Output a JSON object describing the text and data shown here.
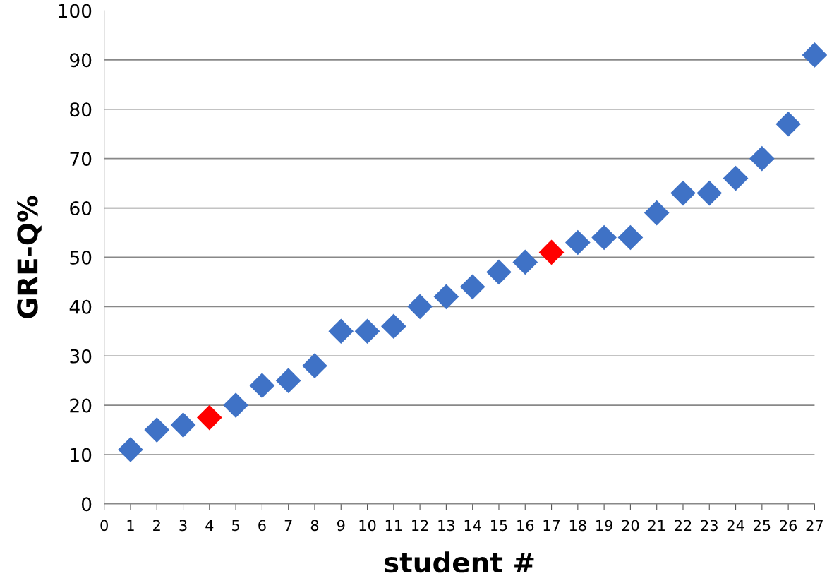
{
  "chart_data": {
    "type": "scatter",
    "xlabel": "student #",
    "ylabel": "GRE-Q%",
    "x": [
      1,
      2,
      3,
      4,
      5,
      6,
      7,
      8,
      9,
      10,
      11,
      12,
      13,
      14,
      15,
      16,
      17,
      18,
      19,
      20,
      21,
      22,
      23,
      24,
      25,
      26,
      27
    ],
    "values": [
      11,
      15,
      16,
      17.5,
      20,
      24,
      25,
      28,
      35,
      35,
      36,
      40,
      42,
      44,
      47,
      49,
      51,
      53,
      54,
      54,
      59,
      63,
      63,
      66,
      70,
      77,
      91
    ],
    "colors": [
      "#3f72c6",
      "#3f72c6",
      "#3f72c6",
      "#ff0000",
      "#3f72c6",
      "#3f72c6",
      "#3f72c6",
      "#3f72c6",
      "#3f72c6",
      "#3f72c6",
      "#3f72c6",
      "#3f72c6",
      "#3f72c6",
      "#3f72c6",
      "#3f72c6",
      "#3f72c6",
      "#ff0000",
      "#3f72c6",
      "#3f72c6",
      "#3f72c6",
      "#3f72c6",
      "#3f72c6",
      "#3f72c6",
      "#3f72c6",
      "#3f72c6",
      "#3f72c6",
      "#3f72c6"
    ],
    "xlim": [
      0,
      27
    ],
    "xticks": [
      0,
      1,
      2,
      3,
      4,
      5,
      6,
      7,
      8,
      9,
      10,
      11,
      12,
      13,
      14,
      15,
      16,
      17,
      18,
      19,
      20,
      21,
      22,
      23,
      24,
      25,
      26,
      27
    ],
    "ylim": [
      0,
      100
    ],
    "yticks": [
      0,
      10,
      20,
      30,
      40,
      50,
      60,
      70,
      80,
      90,
      100
    ],
    "grid": "y",
    "marker": "diamond",
    "legend": false
  }
}
